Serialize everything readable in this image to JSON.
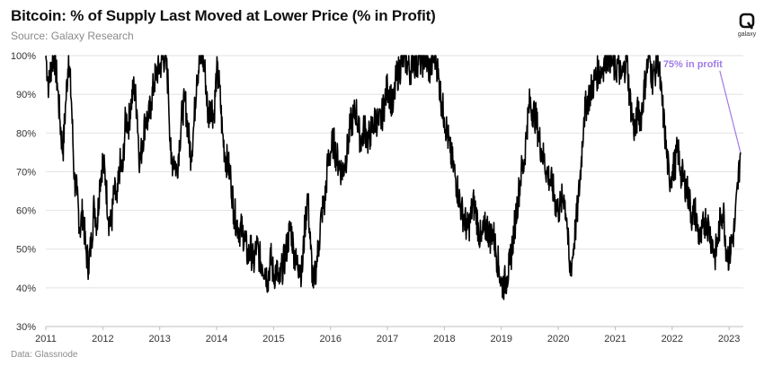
{
  "header": {
    "title": "Bitcoin: % of Supply Last Moved at Lower Price (% in Profit)",
    "subtitle": "Source: Galaxy Research"
  },
  "footer": {
    "source": "Data: Glassnode"
  },
  "logo": {
    "text": "galaxy",
    "icon": "galaxy-logo-icon"
  },
  "colors": {
    "line": "#000000",
    "grid": "#e2e2e2",
    "annotation": "#a07ce6",
    "axis": "#bdbdbd"
  },
  "chart_data": {
    "type": "line",
    "title": "Bitcoin: % of Supply Last Moved at Lower Price (% in Profit)",
    "xlabel": "",
    "ylabel": "",
    "grid": true,
    "xlim": [
      2011.0,
      2023.25
    ],
    "ylim": [
      30,
      100
    ],
    "x_ticks": [
      "2011",
      "2012",
      "2013",
      "2014",
      "2015",
      "2016",
      "2017",
      "2018",
      "2019",
      "2020",
      "2021",
      "2022",
      "2023"
    ],
    "y_ticks": [
      "30%",
      "40%",
      "50%",
      "60%",
      "70%",
      "80%",
      "90%",
      "100%"
    ],
    "annotation": {
      "text": "75% in profit",
      "x": 2023.2,
      "y": 75
    },
    "series": [
      {
        "x": [
          2011.0,
          2011.05,
          2011.1,
          2011.15,
          2011.2,
          2011.25,
          2011.3,
          2011.35,
          2011.4,
          2011.45,
          2011.5,
          2011.55,
          2011.6,
          2011.65,
          2011.7,
          2011.75,
          2011.8,
          2011.85,
          2011.9,
          2011.95,
          2012.0,
          2012.05,
          2012.1,
          2012.15,
          2012.2,
          2012.25,
          2012.3,
          2012.35,
          2012.4,
          2012.45,
          2012.5,
          2012.55,
          2012.6,
          2012.65,
          2012.7,
          2012.75,
          2012.8,
          2012.85,
          2012.9,
          2012.95,
          2013.0,
          2013.05,
          2013.1,
          2013.15,
          2013.2,
          2013.25,
          2013.3,
          2013.35,
          2013.4,
          2013.45,
          2013.5,
          2013.55,
          2013.6,
          2013.65,
          2013.7,
          2013.75,
          2013.8,
          2013.85,
          2013.9,
          2013.95,
          2014.0,
          2014.05,
          2014.1,
          2014.15,
          2014.2,
          2014.25,
          2014.3,
          2014.35,
          2014.4,
          2014.45,
          2014.5,
          2014.55,
          2014.6,
          2014.65,
          2014.7,
          2014.75,
          2014.8,
          2014.85,
          2014.9,
          2014.95,
          2015.0,
          2015.05,
          2015.1,
          2015.15,
          2015.2,
          2015.25,
          2015.3,
          2015.35,
          2015.4,
          2015.45,
          2015.5,
          2015.55,
          2015.6,
          2015.65,
          2015.7,
          2015.75,
          2015.8,
          2015.85,
          2015.9,
          2015.95,
          2016.0,
          2016.05,
          2016.1,
          2016.15,
          2016.2,
          2016.25,
          2016.3,
          2016.35,
          2016.4,
          2016.45,
          2016.5,
          2016.55,
          2016.6,
          2016.65,
          2016.7,
          2016.75,
          2016.8,
          2016.85,
          2016.9,
          2016.95,
          2017.0,
          2017.05,
          2017.1,
          2017.15,
          2017.2,
          2017.25,
          2017.3,
          2017.35,
          2017.4,
          2017.45,
          2017.5,
          2017.55,
          2017.6,
          2017.65,
          2017.7,
          2017.75,
          2017.8,
          2017.85,
          2017.9,
          2017.95,
          2018.0,
          2018.05,
          2018.1,
          2018.15,
          2018.2,
          2018.25,
          2018.3,
          2018.35,
          2018.4,
          2018.45,
          2018.5,
          2018.55,
          2018.6,
          2018.65,
          2018.7,
          2018.75,
          2018.8,
          2018.85,
          2018.9,
          2018.95,
          2019.0,
          2019.05,
          2019.1,
          2019.15,
          2019.2,
          2019.25,
          2019.3,
          2019.35,
          2019.4,
          2019.45,
          2019.5,
          2019.55,
          2019.6,
          2019.65,
          2019.7,
          2019.75,
          2019.8,
          2019.85,
          2019.9,
          2019.95,
          2020.0,
          2020.05,
          2020.1,
          2020.15,
          2020.2,
          2020.25,
          2020.3,
          2020.35,
          2020.4,
          2020.45,
          2020.5,
          2020.55,
          2020.6,
          2020.65,
          2020.7,
          2020.75,
          2020.8,
          2020.85,
          2020.9,
          2020.95,
          2021.0,
          2021.05,
          2021.1,
          2021.15,
          2021.2,
          2021.25,
          2021.3,
          2021.35,
          2021.4,
          2021.45,
          2021.5,
          2021.55,
          2021.6,
          2021.65,
          2021.7,
          2021.75,
          2021.8,
          2021.85,
          2021.9,
          2021.95,
          2022.0,
          2022.05,
          2022.1,
          2022.15,
          2022.2,
          2022.25,
          2022.3,
          2022.35,
          2022.4,
          2022.45,
          2022.5,
          2022.55,
          2022.6,
          2022.65,
          2022.7,
          2022.75,
          2022.8,
          2022.85,
          2022.9,
          2022.95,
          2023.0,
          2023.05,
          2023.1,
          2023.15,
          2023.2
        ],
        "y": [
          100,
          92,
          98,
          100,
          93,
          83,
          75,
          88,
          100,
          88,
          68,
          64,
          55,
          60,
          50,
          46,
          52,
          62,
          56,
          68,
          73,
          68,
          58,
          56,
          65,
          62,
          72,
          70,
          84,
          82,
          88,
          92,
          86,
          72,
          78,
          84,
          83,
          88,
          93,
          96,
          97,
          99,
          100,
          92,
          72,
          74,
          70,
          78,
          86,
          88,
          80,
          74,
          82,
          95,
          98,
          100,
          95,
          84,
          88,
          84,
          96,
          92,
          80,
          74,
          72,
          68,
          60,
          57,
          55,
          55,
          52,
          48,
          50,
          46,
          51,
          48,
          46,
          45,
          42,
          48,
          43,
          45,
          41,
          45,
          48,
          52,
          56,
          50,
          46,
          46,
          44,
          56,
          64,
          50,
          40,
          46,
          52,
          60,
          62,
          72,
          75,
          78,
          74,
          72,
          70,
          72,
          76,
          82,
          84,
          86,
          80,
          78,
          82,
          78,
          80,
          82,
          84,
          82,
          84,
          88,
          92,
          90,
          86,
          94,
          96,
          98,
          100,
          98,
          96,
          100,
          97,
          100,
          98,
          100,
          98,
          96,
          99,
          100,
          94,
          88,
          84,
          80,
          75,
          72,
          68,
          64,
          60,
          58,
          55,
          57,
          62,
          60,
          55,
          52,
          55,
          56,
          53,
          55,
          50,
          46,
          41,
          41,
          43,
          46,
          52,
          58,
          64,
          70,
          72,
          82,
          88,
          86,
          84,
          80,
          76,
          73,
          70,
          68,
          66,
          62,
          60,
          62,
          64,
          58,
          44,
          48,
          55,
          62,
          72,
          84,
          88,
          90,
          92,
          94,
          96,
          96,
          98,
          100,
          100,
          98,
          96,
          98,
          94,
          96,
          100,
          90,
          84,
          80,
          86,
          84,
          90,
          96,
          100,
          94,
          96,
          100,
          91,
          84,
          75,
          68,
          70,
          72,
          76,
          70,
          68,
          66,
          63,
          58,
          60,
          55,
          52,
          56,
          58,
          55,
          52,
          48,
          52,
          58,
          60,
          50,
          48,
          52,
          56,
          66,
          75
        ],
        "raw_x_extra": [],
        "raw_y_extra": []
      }
    ]
  }
}
